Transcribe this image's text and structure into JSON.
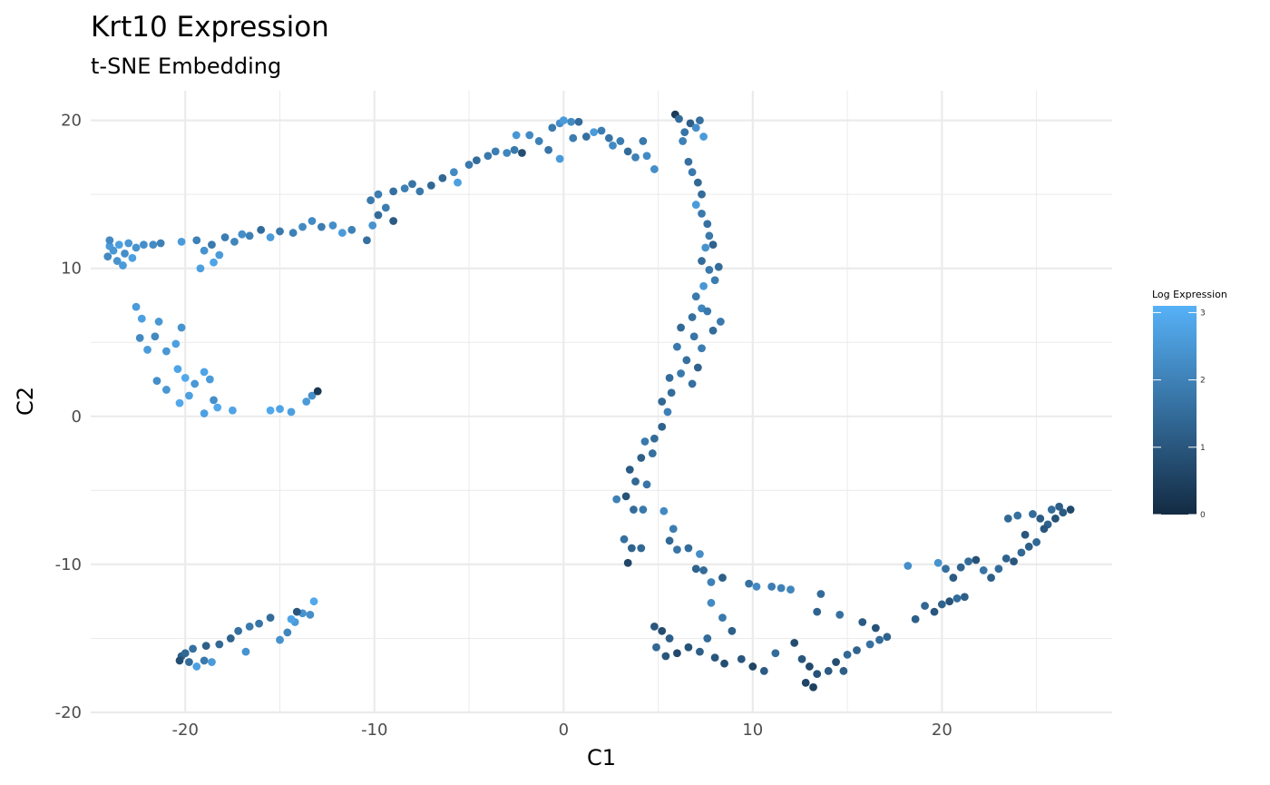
{
  "chart_data": {
    "type": "scatter",
    "title": "Krt10 Expression",
    "subtitle": "t-SNE Embedding",
    "xlabel": "C1",
    "ylabel": "C2",
    "xlim": [
      -25,
      29
    ],
    "ylim": [
      -20,
      22
    ],
    "x_ticks": [
      -20,
      -10,
      0,
      10,
      20
    ],
    "y_ticks": [
      -20,
      -10,
      0,
      10,
      20
    ],
    "x_tick_labels": [
      "-20",
      "-10",
      "0",
      "10",
      "20"
    ],
    "y_tick_labels": [
      "-20",
      "-10",
      "0",
      "10",
      "20"
    ],
    "grid": true,
    "legend": {
      "title": "Log Expression",
      "placement": "right",
      "range": [
        0,
        3.1
      ],
      "ticks": [
        0,
        1,
        2,
        3
      ],
      "tick_labels": [
        "0",
        "1",
        "2",
        "3"
      ],
      "color_low": "#132B43",
      "color_high": "#56B1F7"
    },
    "colors": {
      "low": "#132B43",
      "high": "#56B1F7",
      "grid": "#ebebeb"
    },
    "points": [
      [
        -24.0,
        11.5,
        2.6
      ],
      [
        -23.8,
        11.2,
        2.5
      ],
      [
        -23.5,
        11.6,
        2.7
      ],
      [
        -23.2,
        11.0,
        2.3
      ],
      [
        -24.1,
        10.8,
        2.2
      ],
      [
        -23.0,
        11.7,
        2.5
      ],
      [
        -22.6,
        11.4,
        2.4
      ],
      [
        -22.2,
        11.6,
        2.3
      ],
      [
        -23.6,
        10.5,
        2.4
      ],
      [
        -23.3,
        10.2,
        2.6
      ],
      [
        -22.8,
        10.7,
        2.7
      ],
      [
        -24.0,
        11.9,
        2.2
      ],
      [
        -21.7,
        11.6,
        2.2
      ],
      [
        -21.3,
        11.7,
        2.0
      ],
      [
        -20.2,
        11.8,
        2.6
      ],
      [
        -19.4,
        11.9,
        2.0
      ],
      [
        -19.0,
        11.2,
        2.4
      ],
      [
        -18.6,
        11.6,
        1.8
      ],
      [
        -18.2,
        10.9,
        2.6
      ],
      [
        -18.5,
        10.4,
        2.8
      ],
      [
        -19.2,
        10.0,
        2.7
      ],
      [
        -17.9,
        12.1,
        1.9
      ],
      [
        -17.4,
        11.8,
        2.1
      ],
      [
        -17.0,
        12.3,
        2.3
      ],
      [
        -16.6,
        12.2,
        2.0
      ],
      [
        -16.0,
        12.6,
        1.5
      ],
      [
        -15.5,
        12.1,
        2.6
      ],
      [
        -15.0,
        12.5,
        1.8
      ],
      [
        -14.3,
        12.4,
        2.0
      ],
      [
        -13.8,
        12.8,
        2.2
      ],
      [
        -13.3,
        13.2,
        2.2
      ],
      [
        -12.8,
        12.8,
        1.9
      ],
      [
        -12.2,
        12.9,
        2.3
      ],
      [
        -11.7,
        12.4,
        2.6
      ],
      [
        -11.2,
        12.6,
        2.0
      ],
      [
        -10.4,
        11.9,
        1.6
      ],
      [
        -10.1,
        12.9,
        2.4
      ],
      [
        -9.8,
        13.6,
        1.5
      ],
      [
        -9.4,
        14.1,
        1.9
      ],
      [
        -9.0,
        13.2,
        1.1
      ],
      [
        -10.2,
        14.6,
        1.8
      ],
      [
        -9.8,
        15.0,
        1.9
      ],
      [
        -9.0,
        15.2,
        1.6
      ],
      [
        -8.4,
        15.4,
        2.0
      ],
      [
        -8.0,
        15.7,
        1.7
      ],
      [
        -7.6,
        15.2,
        1.8
      ],
      [
        -7.0,
        15.6,
        1.4
      ],
      [
        -6.4,
        16.1,
        1.4
      ],
      [
        -5.8,
        16.5,
        2.2
      ],
      [
        -5.6,
        15.8,
        2.7
      ],
      [
        -5.0,
        17.0,
        1.8
      ],
      [
        -4.6,
        17.3,
        1.5
      ],
      [
        -4.0,
        17.6,
        1.8
      ],
      [
        -3.6,
        17.9,
        1.9
      ],
      [
        -3.0,
        17.8,
        2.1
      ],
      [
        -2.6,
        18.0,
        1.8
      ],
      [
        -2.2,
        17.8,
        0.8
      ],
      [
        -2.5,
        19.0,
        2.5
      ],
      [
        -1.8,
        19.0,
        2.2
      ],
      [
        -1.3,
        18.6,
        2.0
      ],
      [
        -0.8,
        18.0,
        1.7
      ],
      [
        -0.6,
        19.5,
        1.8
      ],
      [
        -0.2,
        19.8,
        2.3
      ],
      [
        0.0,
        20.0,
        2.6
      ],
      [
        0.4,
        19.9,
        2.2
      ],
      [
        0.8,
        19.9,
        1.5
      ],
      [
        0.5,
        18.8,
        1.9
      ],
      [
        -0.2,
        17.4,
        2.6
      ],
      [
        1.2,
        18.9,
        1.6
      ],
      [
        1.6,
        19.2,
        2.6
      ],
      [
        2.0,
        19.3,
        1.9
      ],
      [
        2.4,
        18.8,
        1.7
      ],
      [
        2.6,
        18.3,
        2.2
      ],
      [
        3.0,
        18.6,
        1.9
      ],
      [
        3.4,
        17.9,
        1.5
      ],
      [
        3.8,
        17.5,
        2.0
      ],
      [
        4.2,
        18.6,
        1.8
      ],
      [
        4.4,
        17.6,
        2.2
      ],
      [
        4.8,
        16.7,
        2.3
      ],
      [
        5.9,
        20.4,
        0.4
      ],
      [
        6.1,
        20.1,
        1.5
      ],
      [
        6.4,
        19.2,
        1.7
      ],
      [
        6.7,
        19.8,
        1.2
      ],
      [
        7.0,
        19.5,
        2.3
      ],
      [
        7.2,
        20.0,
        1.6
      ],
      [
        7.4,
        18.9,
        2.6
      ],
      [
        6.3,
        18.6,
        2.0
      ],
      [
        6.6,
        17.2,
        1.6
      ],
      [
        6.8,
        16.5,
        1.8
      ],
      [
        7.1,
        15.8,
        1.4
      ],
      [
        7.3,
        15.0,
        1.5
      ],
      [
        7.0,
        14.3,
        2.6
      ],
      [
        7.3,
        13.7,
        1.8
      ],
      [
        7.6,
        13.0,
        1.6
      ],
      [
        7.7,
        12.2,
        1.8
      ],
      [
        7.5,
        11.4,
        2.4
      ],
      [
        7.9,
        11.6,
        1.3
      ],
      [
        7.3,
        10.5,
        1.5
      ],
      [
        7.7,
        9.9,
        1.8
      ],
      [
        8.2,
        10.1,
        1.5
      ],
      [
        8.0,
        9.2,
        1.9
      ],
      [
        7.4,
        8.8,
        2.5
      ],
      [
        7.0,
        8.1,
        1.8
      ],
      [
        7.3,
        7.3,
        2.1
      ],
      [
        6.8,
        6.7,
        1.6
      ],
      [
        7.6,
        7.1,
        1.8
      ],
      [
        6.2,
        6.0,
        1.4
      ],
      [
        6.9,
        5.4,
        1.7
      ],
      [
        7.3,
        4.6,
        1.9
      ],
      [
        7.9,
        5.8,
        1.5
      ],
      [
        8.3,
        6.4,
        1.8
      ],
      [
        6.0,
        4.7,
        1.8
      ],
      [
        6.5,
        3.8,
        1.6
      ],
      [
        7.1,
        3.3,
        1.3
      ],
      [
        5.6,
        2.6,
        1.5
      ],
      [
        6.2,
        2.9,
        1.8
      ],
      [
        6.8,
        2.2,
        1.6
      ],
      [
        5.7,
        1.6,
        1.5
      ],
      [
        5.2,
        1.0,
        1.4
      ],
      [
        5.5,
        0.3,
        2.0
      ],
      [
        5.2,
        -0.7,
        1.3
      ],
      [
        4.8,
        -1.5,
        1.5
      ],
      [
        4.3,
        -1.7,
        1.8
      ],
      [
        4.7,
        -2.5,
        1.6
      ],
      [
        4.1,
        -2.8,
        1.2
      ],
      [
        3.5,
        -3.6,
        1.1
      ],
      [
        3.8,
        -4.4,
        1.4
      ],
      [
        4.4,
        -4.6,
        1.7
      ],
      [
        3.3,
        -5.4,
        0.9
      ],
      [
        2.8,
        -5.6,
        2.0
      ],
      [
        3.7,
        -6.3,
        1.5
      ],
      [
        4.2,
        -6.3,
        1.8
      ],
      [
        5.3,
        -6.4,
        2.2
      ],
      [
        3.2,
        -8.3,
        1.6
      ],
      [
        3.6,
        -8.9,
        1.3
      ],
      [
        3.4,
        -9.9,
        0.6
      ],
      [
        4.1,
        -8.9,
        1.4
      ],
      [
        5.8,
        -7.6,
        1.9
      ],
      [
        5.6,
        -8.4,
        1.4
      ],
      [
        6.0,
        -9.0,
        1.7
      ],
      [
        6.6,
        -8.9,
        1.5
      ],
      [
        7.2,
        -9.3,
        2.3
      ],
      [
        7.0,
        -10.3,
        1.3
      ],
      [
        7.4,
        -10.4,
        1.5
      ],
      [
        8.4,
        -10.9,
        1.2
      ],
      [
        7.8,
        -11.2,
        2.0
      ],
      [
        9.8,
        -11.3,
        1.6
      ],
      [
        10.2,
        -11.5,
        2.2
      ],
      [
        11.0,
        -11.5,
        1.9
      ],
      [
        11.5,
        -11.6,
        2.0
      ],
      [
        12.0,
        -11.7,
        2.1
      ],
      [
        4.8,
        -14.2,
        1.0
      ],
      [
        5.2,
        -14.5,
        0.8
      ],
      [
        5.6,
        -15.0,
        1.2
      ],
      [
        4.9,
        -15.6,
        1.4
      ],
      [
        5.4,
        -16.2,
        1.0
      ],
      [
        6.0,
        -16.0,
        0.7
      ],
      [
        6.6,
        -15.6,
        0.9
      ],
      [
        7.2,
        -15.9,
        1.2
      ],
      [
        7.6,
        -15.0,
        1.5
      ],
      [
        8.0,
        -16.3,
        1.0
      ],
      [
        8.5,
        -16.7,
        0.8
      ],
      [
        9.4,
        -16.4,
        1.0
      ],
      [
        10.0,
        -16.9,
        0.6
      ],
      [
        10.6,
        -17.2,
        1.1
      ],
      [
        11.2,
        -16.0,
        1.5
      ],
      [
        8.9,
        -14.5,
        1.2
      ],
      [
        7.8,
        -12.6,
        2.2
      ],
      [
        8.4,
        -13.6,
        1.8
      ],
      [
        12.2,
        -15.3,
        0.8
      ],
      [
        12.6,
        -16.4,
        1.0
      ],
      [
        13.0,
        -16.9,
        0.7
      ],
      [
        13.4,
        -17.4,
        0.9
      ],
      [
        12.8,
        -18.0,
        0.6
      ],
      [
        13.2,
        -18.3,
        0.5
      ],
      [
        14.0,
        -17.2,
        1.1
      ],
      [
        14.4,
        -16.6,
        0.8
      ],
      [
        14.8,
        -17.2,
        1.2
      ],
      [
        15.0,
        -16.1,
        1.4
      ],
      [
        15.5,
        -15.8,
        1.3
      ],
      [
        16.2,
        -15.4,
        1.6
      ],
      [
        16.7,
        -15.1,
        1.5
      ],
      [
        17.1,
        -14.9,
        1.3
      ],
      [
        16.5,
        -14.3,
        0.9
      ],
      [
        15.8,
        -13.9,
        1.1
      ],
      [
        14.6,
        -13.4,
        1.6
      ],
      [
        13.4,
        -13.2,
        1.3
      ],
      [
        13.6,
        -12.0,
        1.5
      ],
      [
        18.2,
        -10.1,
        2.3
      ],
      [
        18.6,
        -13.7,
        1.2
      ],
      [
        19.1,
        -12.8,
        1.4
      ],
      [
        19.6,
        -13.2,
        1.0
      ],
      [
        20.0,
        -12.7,
        1.3
      ],
      [
        20.4,
        -12.5,
        0.9
      ],
      [
        20.8,
        -12.3,
        1.5
      ],
      [
        21.2,
        -12.2,
        1.2
      ],
      [
        19.8,
        -9.9,
        2.4
      ],
      [
        20.2,
        -10.3,
        1.6
      ],
      [
        20.6,
        -10.9,
        1.1
      ],
      [
        21.0,
        -10.2,
        1.3
      ],
      [
        21.4,
        -9.8,
        1.5
      ],
      [
        21.8,
        -9.7,
        0.9
      ],
      [
        22.2,
        -10.4,
        1.7
      ],
      [
        22.6,
        -10.9,
        1.2
      ],
      [
        23.0,
        -10.3,
        1.5
      ],
      [
        23.4,
        -9.6,
        1.3
      ],
      [
        23.8,
        -9.8,
        1.0
      ],
      [
        24.2,
        -9.2,
        1.4
      ],
      [
        24.6,
        -8.8,
        1.2
      ],
      [
        25.0,
        -8.5,
        1.4
      ],
      [
        24.4,
        -8.0,
        1.0
      ],
      [
        23.5,
        -6.9,
        1.4
      ],
      [
        24.0,
        -6.7,
        1.6
      ],
      [
        24.8,
        -6.6,
        1.5
      ],
      [
        25.2,
        -6.9,
        1.1
      ],
      [
        25.6,
        -7.3,
        1.3
      ],
      [
        26.0,
        -6.9,
        0.9
      ],
      [
        26.4,
        -6.5,
        1.1
      ],
      [
        26.8,
        -6.3,
        0.7
      ],
      [
        26.2,
        -6.1,
        1.2
      ],
      [
        25.8,
        -6.3,
        1.5
      ],
      [
        25.4,
        -7.6,
        1.0
      ],
      [
        -22.6,
        7.4,
        2.6
      ],
      [
        -22.3,
        6.6,
        2.7
      ],
      [
        -22.4,
        5.3,
        2.2
      ],
      [
        -22.0,
        4.5,
        2.6
      ],
      [
        -21.6,
        5.4,
        2.2
      ],
      [
        -21.4,
        6.4,
        2.5
      ],
      [
        -21.0,
        4.4,
        2.5
      ],
      [
        -20.5,
        4.9,
        2.7
      ],
      [
        -20.2,
        6.0,
        2.4
      ],
      [
        -20.4,
        3.2,
        2.8
      ],
      [
        -20.0,
        2.6,
        2.9
      ],
      [
        -19.5,
        2.2,
        2.5
      ],
      [
        -19.0,
        3.0,
        2.8
      ],
      [
        -18.7,
        2.5,
        2.6
      ],
      [
        -19.8,
        1.4,
        2.7
      ],
      [
        -20.3,
        0.9,
        2.9
      ],
      [
        -21.0,
        1.8,
        2.5
      ],
      [
        -21.5,
        2.4,
        2.3
      ],
      [
        -18.5,
        1.1,
        2.3
      ],
      [
        -18.3,
        0.6,
        2.9
      ],
      [
        -17.5,
        0.4,
        2.8
      ],
      [
        -19.0,
        0.2,
        2.7
      ],
      [
        -15.5,
        0.4,
        2.9
      ],
      [
        -15.0,
        0.5,
        2.8
      ],
      [
        -14.4,
        0.3,
        2.7
      ],
      [
        -13.6,
        1.0,
        2.6
      ],
      [
        -13.3,
        1.4,
        2.3
      ],
      [
        -13.0,
        1.7,
        0.3
      ],
      [
        -20.2,
        -16.2,
        1.2
      ],
      [
        -19.8,
        -16.6,
        1.5
      ],
      [
        -19.4,
        -16.9,
        2.7
      ],
      [
        -19.0,
        -16.5,
        1.8
      ],
      [
        -18.6,
        -16.6,
        2.6
      ],
      [
        -18.2,
        -15.4,
        1.4
      ],
      [
        -17.6,
        -15.0,
        1.3
      ],
      [
        -17.2,
        -14.5,
        1.6
      ],
      [
        -16.6,
        -14.2,
        1.8
      ],
      [
        -16.1,
        -14.0,
        1.7
      ],
      [
        -15.5,
        -13.6,
        1.5
      ],
      [
        -15.0,
        -15.1,
        2.4
      ],
      [
        -14.6,
        -14.6,
        2.1
      ],
      [
        -14.2,
        -13.9,
        2.6
      ],
      [
        -13.8,
        -13.3,
        2.4
      ],
      [
        -13.4,
        -13.4,
        2.3
      ],
      [
        -13.2,
        -12.5,
        2.9
      ],
      [
        -16.8,
        -15.9,
        2.4
      ],
      [
        -20.3,
        -16.5,
        0.8
      ],
      [
        -20.0,
        -16.0,
        1.4
      ],
      [
        -19.6,
        -15.7,
        1.6
      ],
      [
        -18.9,
        -15.5,
        1.2
      ],
      [
        -14.1,
        -13.2,
        1.0
      ],
      [
        -14.4,
        -13.7,
        2.8
      ]
    ]
  }
}
